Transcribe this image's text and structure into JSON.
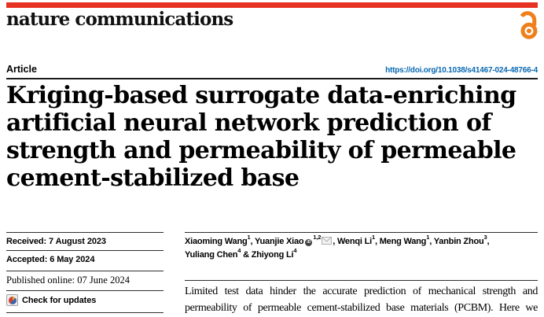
{
  "masthead": {
    "journal": "nature communications",
    "open_access_icon": "open-access-lock"
  },
  "article_bar": {
    "type_label": "Article",
    "doi": "https://doi.org/10.1038/s41467-024-48766-4"
  },
  "title": {
    "lines": [
      "Kriging-based surrogate data-enriching",
      "artificial neural network prediction of",
      "strength and permeability of permeable",
      "cement-stabilized base"
    ]
  },
  "sidebar": {
    "received": "Received: 7 August 2023",
    "accepted": "Accepted: 6 May 2024",
    "published": "Published online: 07 June 2024",
    "check_updates": "Check for updates"
  },
  "authors": {
    "segments": [
      {
        "name": "Xiaoming Wang",
        "sup": "1",
        "sep": ", "
      },
      {
        "name": "Yuanjie Xiao",
        "orcid": true,
        "sup": "1,2",
        "envelope": true,
        "sep": ", "
      },
      {
        "name": "Wenqi Li",
        "sup": "1",
        "sep": ", "
      },
      {
        "name": "Meng Wang",
        "sup": "1",
        "sep": ", "
      },
      {
        "name": "Yanbin Zhou",
        "sup": "3",
        "sep": ",",
        "break_after": true
      },
      {
        "name": "Yuliang Chen",
        "sup": "4",
        "sep": " & "
      },
      {
        "name": "Zhiyong Li",
        "sup": "4",
        "sep": ""
      }
    ]
  },
  "abstract": {
    "lines": [
      "Limited test data hinder the accurate prediction of mechanical strength and",
      "permeability of permeable cement-stabilized base materials (PCBM). Here we"
    ]
  },
  "icons": {
    "orcid_glyph": "iD"
  },
  "colors": {
    "brand_red": "#e63323",
    "doi_blue": "#0768b2",
    "open_access_orange": "#ef7f1b"
  }
}
